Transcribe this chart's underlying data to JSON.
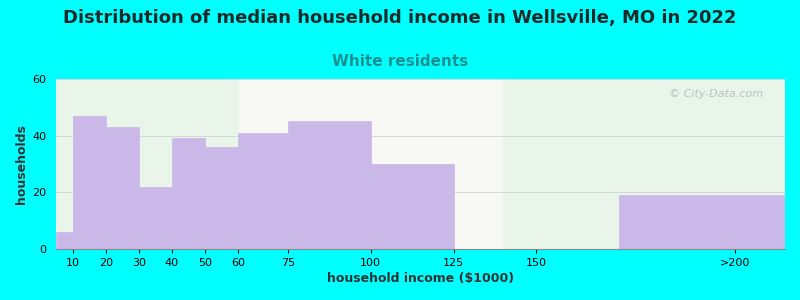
{
  "title": "Distribution of median household income in Wellsville, MO in 2022",
  "subtitle": "White residents",
  "xlabel": "household income ($1000)",
  "ylabel": "households",
  "background_outer": "#00FFFF",
  "bar_color": "#c9b8e8",
  "bar_edge_color": "#b8a8dc",
  "categories": [
    "10",
    "20",
    "30",
    "40",
    "50",
    "60",
    "75",
    "100",
    "125",
    "150",
    ">200"
  ],
  "values": [
    6,
    47,
    43,
    22,
    39,
    36,
    41,
    45,
    30,
    0,
    19
  ],
  "bar_lefts": [
    5,
    10,
    20,
    30,
    40,
    50,
    60,
    75,
    100,
    125,
    175
  ],
  "bar_widths": [
    5,
    10,
    10,
    10,
    10,
    10,
    15,
    25,
    25,
    25,
    50
  ],
  "xlim": [
    5,
    225
  ],
  "ylim": [
    0,
    60
  ],
  "xticks": [
    10,
    20,
    30,
    40,
    50,
    60,
    75,
    100,
    125,
    150
  ],
  "xticklabels": [
    "10",
    "20",
    "30",
    "40",
    "50",
    "60",
    "75",
    "100",
    "125",
    "150"
  ],
  "last_tick_x": 210,
  "last_tick_label": ">200",
  "yticks": [
    0,
    20,
    40,
    60
  ],
  "title_fontsize": 13,
  "subtitle_fontsize": 11,
  "subtitle_color": "#1a9090",
  "axis_label_fontsize": 9,
  "tick_fontsize": 8,
  "watermark_text": "© City-Data.com",
  "watermark_color": "#b0b8c0",
  "green_zone_end_x": 60,
  "green_zone_start_x2": 140,
  "green_zone_end_x2": 225
}
